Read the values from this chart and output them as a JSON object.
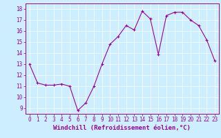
{
  "x": [
    0,
    1,
    2,
    3,
    4,
    5,
    6,
    7,
    8,
    9,
    10,
    11,
    12,
    13,
    14,
    15,
    16,
    17,
    18,
    19,
    20,
    21,
    22,
    23
  ],
  "y": [
    13.0,
    11.3,
    11.1,
    11.1,
    11.2,
    11.0,
    8.8,
    9.5,
    11.0,
    13.0,
    14.8,
    15.5,
    16.5,
    16.1,
    17.8,
    17.1,
    13.9,
    17.4,
    17.7,
    17.7,
    17.0,
    16.5,
    15.2,
    13.3
  ],
  "line_color": "#990099",
  "marker": "+",
  "marker_size": 3,
  "bg_color": "#cceeff",
  "grid_color": "#ffffff",
  "xlabel": "Windchill (Refroidissement éolien,°C)",
  "xlim": [
    -0.5,
    23.5
  ],
  "ylim": [
    8.5,
    18.5
  ],
  "xticks": [
    0,
    1,
    2,
    3,
    4,
    5,
    6,
    7,
    8,
    9,
    10,
    11,
    12,
    13,
    14,
    15,
    16,
    17,
    18,
    19,
    20,
    21,
    22,
    23
  ],
  "yticks": [
    9,
    10,
    11,
    12,
    13,
    14,
    15,
    16,
    17,
    18
  ],
  "xlabel_color": "#990099",
  "tick_color": "#990099",
  "font_size_tick": 5.5,
  "font_size_xlabel": 6.5,
  "linewidth": 0.8,
  "markeredgewidth": 0.8
}
